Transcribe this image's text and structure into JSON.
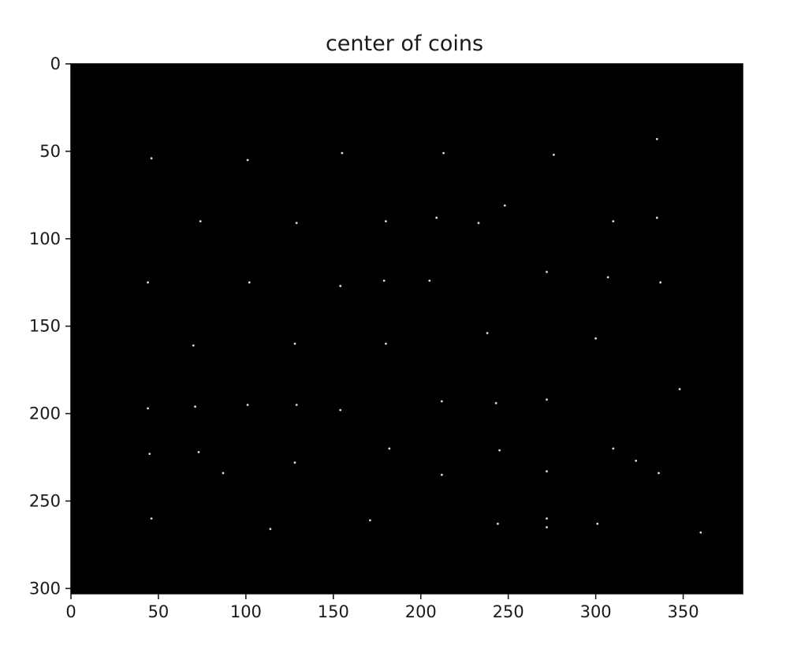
{
  "chart_data": {
    "type": "scatter",
    "title": "center of coins",
    "xlabel": "",
    "ylabel": "",
    "background": "#000000",
    "point_color": "#d9d9d9",
    "xlim": [
      0,
      384
    ],
    "ylim": [
      303,
      0
    ],
    "y_inverted": true,
    "grid": false,
    "xticks": [
      0,
      50,
      100,
      150,
      200,
      250,
      300,
      350
    ],
    "yticks": [
      0,
      50,
      100,
      150,
      200,
      250,
      300
    ],
    "points": [
      {
        "x": 46,
        "y": 54
      },
      {
        "x": 101,
        "y": 55
      },
      {
        "x": 155,
        "y": 51
      },
      {
        "x": 213,
        "y": 51
      },
      {
        "x": 276,
        "y": 52
      },
      {
        "x": 335,
        "y": 43
      },
      {
        "x": 74,
        "y": 90
      },
      {
        "x": 129,
        "y": 91
      },
      {
        "x": 180,
        "y": 90
      },
      {
        "x": 209,
        "y": 88
      },
      {
        "x": 233,
        "y": 91
      },
      {
        "x": 248,
        "y": 81
      },
      {
        "x": 310,
        "y": 90
      },
      {
        "x": 335,
        "y": 88
      },
      {
        "x": 44,
        "y": 125
      },
      {
        "x": 102,
        "y": 125
      },
      {
        "x": 154,
        "y": 127
      },
      {
        "x": 179,
        "y": 124
      },
      {
        "x": 205,
        "y": 124
      },
      {
        "x": 272,
        "y": 119
      },
      {
        "x": 307,
        "y": 122
      },
      {
        "x": 337,
        "y": 125
      },
      {
        "x": 70,
        "y": 161
      },
      {
        "x": 128,
        "y": 160
      },
      {
        "x": 180,
        "y": 160
      },
      {
        "x": 238,
        "y": 154
      },
      {
        "x": 300,
        "y": 157
      },
      {
        "x": 44,
        "y": 197
      },
      {
        "x": 71,
        "y": 196
      },
      {
        "x": 101,
        "y": 195
      },
      {
        "x": 129,
        "y": 195
      },
      {
        "x": 154,
        "y": 198
      },
      {
        "x": 212,
        "y": 193
      },
      {
        "x": 243,
        "y": 194
      },
      {
        "x": 272,
        "y": 192
      },
      {
        "x": 348,
        "y": 186
      },
      {
        "x": 45,
        "y": 223
      },
      {
        "x": 73,
        "y": 222
      },
      {
        "x": 87,
        "y": 234
      },
      {
        "x": 128,
        "y": 228
      },
      {
        "x": 182,
        "y": 220
      },
      {
        "x": 212,
        "y": 235
      },
      {
        "x": 245,
        "y": 221
      },
      {
        "x": 272,
        "y": 233
      },
      {
        "x": 310,
        "y": 220
      },
      {
        "x": 323,
        "y": 227
      },
      {
        "x": 336,
        "y": 234
      },
      {
        "x": 46,
        "y": 260
      },
      {
        "x": 114,
        "y": 266
      },
      {
        "x": 171,
        "y": 261
      },
      {
        "x": 244,
        "y": 263
      },
      {
        "x": 272,
        "y": 260
      },
      {
        "x": 272,
        "y": 265
      },
      {
        "x": 301,
        "y": 263
      },
      {
        "x": 360,
        "y": 268
      }
    ]
  }
}
